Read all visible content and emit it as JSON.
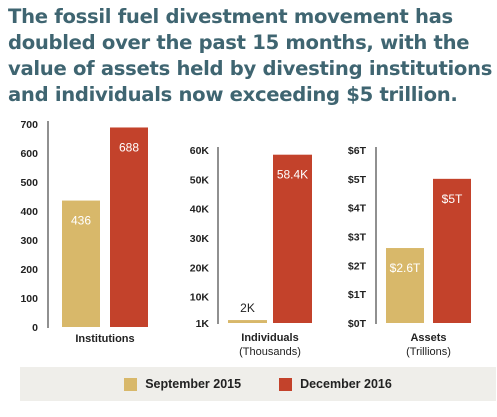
{
  "headline": "The fossil fuel divestment movement has doubled over the past 15 months, with the value of assets held by divesting institutions and individuals now exceeding $5 trillion.",
  "colors": {
    "series_1": "#d8b86a",
    "series_2": "#c3422b",
    "headline": "#3f6571",
    "legend_bg": "#efeeea"
  },
  "legend": [
    {
      "label": "September 2015",
      "color": "#d8b86a"
    },
    {
      "label": "December 2016",
      "color": "#c3422b"
    }
  ],
  "chart_data": [
    {
      "type": "bar",
      "categories": [
        "Institutions"
      ],
      "xlabel": "Institutions",
      "xlabel_sub": "",
      "ylim": [
        0,
        700
      ],
      "yticks": [
        0,
        100,
        200,
        300,
        400,
        500,
        600,
        700
      ],
      "ytick_labels": [
        "0",
        "100",
        "200",
        "300",
        "400",
        "500",
        "600",
        "700"
      ],
      "series": [
        {
          "name": "September 2015",
          "values": [
            436
          ],
          "labels": [
            "436"
          ]
        },
        {
          "name": "December 2016",
          "values": [
            688
          ],
          "labels": [
            "688"
          ]
        }
      ],
      "grid": false
    },
    {
      "type": "bar",
      "categories": [
        "Individuals"
      ],
      "xlabel": "Individuals",
      "xlabel_sub": "(Thousands)",
      "ylim": [
        1000,
        60000
      ],
      "yticks": [
        1000,
        10000,
        20000,
        30000,
        40000,
        50000,
        60000
      ],
      "ytick_labels": [
        "1K",
        "10K",
        "20K",
        "30K",
        "40K",
        "50K",
        "60K"
      ],
      "series": [
        {
          "name": "September 2015",
          "values": [
            2000
          ],
          "labels": [
            "2K"
          ]
        },
        {
          "name": "December 2016",
          "values": [
            58400
          ],
          "labels": [
            "58.4K"
          ]
        }
      ],
      "grid": false
    },
    {
      "type": "bar",
      "categories": [
        "Assets"
      ],
      "xlabel": "Assets",
      "xlabel_sub": "(Trillions)",
      "ylim": [
        0,
        6
      ],
      "yticks": [
        0,
        1,
        2,
        3,
        4,
        5,
        6
      ],
      "ytick_labels": [
        "$0T",
        "$1T",
        "$2T",
        "$3T",
        "$4T",
        "$5T",
        "$6T"
      ],
      "series": [
        {
          "name": "September 2015",
          "values": [
            2.6
          ],
          "labels": [
            "$2.6T"
          ]
        },
        {
          "name": "December 2016",
          "values": [
            5
          ],
          "labels": [
            "$5T"
          ]
        }
      ],
      "grid": false
    }
  ]
}
